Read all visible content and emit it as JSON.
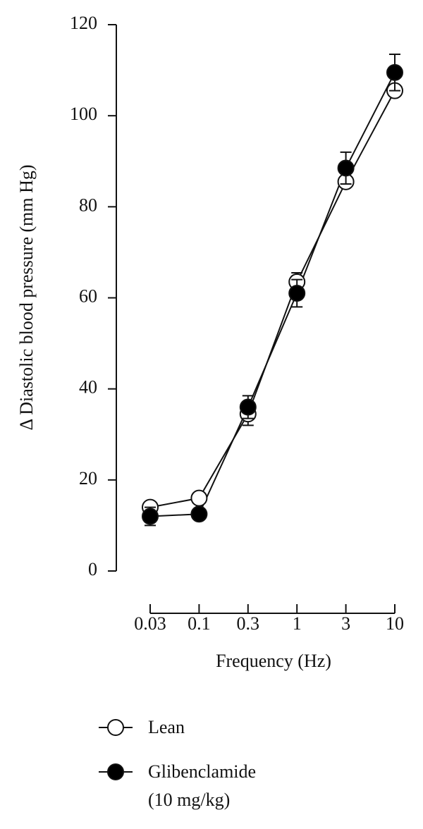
{
  "chart_data": {
    "type": "line",
    "y_label": "Δ Diastolic blood pressure (mm Hg)",
    "x_label": "Frequency (Hz)",
    "categories": [
      "0.03",
      "0.1",
      "0.3",
      "1",
      "3",
      "10"
    ],
    "ylim": [
      0,
      120
    ],
    "yticks": [
      0,
      20,
      40,
      60,
      80,
      100,
      120
    ],
    "series": [
      {
        "name": "Lean",
        "color": "#ffffff",
        "values": [
          14,
          16,
          34.5,
          63.5,
          85.5,
          105.5
        ],
        "errors": [
          1,
          1,
          2.5,
          2,
          1,
          1
        ]
      },
      {
        "name": "Glibenclamide (10 mg/kg)",
        "color": "#000000",
        "values": [
          12,
          12.5,
          36,
          61,
          88.5,
          109.5
        ],
        "errors": [
          2,
          1,
          2.5,
          3,
          3.5,
          4
        ]
      }
    ]
  }
}
